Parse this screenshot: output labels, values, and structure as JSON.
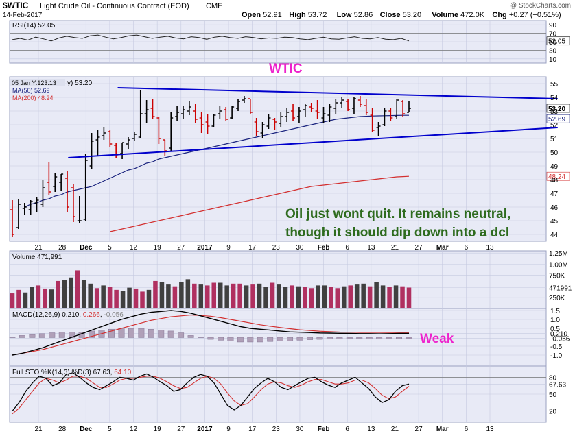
{
  "header": {
    "symbol": "$WTIC",
    "name": "Light Crude Oil - Continuous Contract (EOD)",
    "exchange": "CME",
    "date": "14-Feb-2017",
    "credit": "@ StockCharts.com",
    "ohlc": [
      {
        "label": "Open",
        "value": "52.91"
      },
      {
        "label": "High",
        "value": "53.72"
      },
      {
        "label": "Low",
        "value": "52.86"
      },
      {
        "label": "Close",
        "value": "53.20"
      },
      {
        "label": "Volume",
        "value": "472.0K"
      },
      {
        "label": "Chg",
        "value": "+0.27 (+0.51%)"
      }
    ]
  },
  "annotations": {
    "title": "WTIC",
    "weak": "Weak",
    "comment_line1": "Oil just wont quit.  It remains neutral,",
    "comment_line2": "though it should dip down into a dcl",
    "hover_label": "05 Jan Y:123.13",
    "hover_value": "y) 53.20"
  },
  "colors": {
    "panel_bg": "#e8eaf6",
    "grid": "#c5c9e0",
    "up_bar": "#000000",
    "down_bar": "#cc0000",
    "ma50": "#1a237e",
    "ma200": "#d32f2f",
    "trendline": "#0000cc",
    "title": "#ee22cc",
    "comment": "#2e6b1e",
    "vol_up": "#404040",
    "vol_down": "#b03060"
  },
  "chart_data": {
    "x_labels": [
      "21",
      "28",
      "Dec",
      "5",
      "12",
      "19",
      "27",
      "2017",
      "9",
      "17",
      "23",
      "30",
      "Feb",
      "6",
      "13",
      "21",
      "27",
      "Mar",
      "6",
      "13"
    ],
    "rsi": {
      "label": "RSI(14)",
      "value": "52.05",
      "ticks": [
        "90",
        "70",
        "50",
        "30",
        "10"
      ],
      "last_label": "52.05",
      "series": [
        55,
        58,
        54,
        61,
        57,
        52,
        59,
        63,
        60,
        58,
        64,
        66,
        61,
        57,
        60,
        64,
        66,
        62,
        58,
        61,
        63,
        59,
        57,
        62,
        60,
        56,
        61,
        63,
        60,
        58,
        62,
        60,
        57,
        59,
        58,
        61,
        60,
        57,
        55,
        58,
        61,
        57,
        56,
        59,
        62,
        58,
        57,
        60,
        56,
        55,
        58,
        52
      ]
    },
    "price": {
      "type": "ohlc",
      "label_suffix": "y) 53.20",
      "ma50_label": "MA(50) 52.69",
      "ma200_label": "MA(200) 48.24",
      "yticks": [
        "55",
        "54",
        "53",
        "52",
        "51",
        "50",
        "49",
        "48",
        "47",
        "46",
        "45",
        "44"
      ],
      "ylim": [
        43.5,
        55.5
      ],
      "last_close_label": "53.20",
      "ma50_last_label": "52.69",
      "ma200_last_label": "48.24",
      "bars": [
        {
          "o": 45.8,
          "h": 46.5,
          "l": 43.8,
          "c": 44.0
        },
        {
          "o": 44.5,
          "h": 46.6,
          "l": 44.4,
          "c": 46.2
        },
        {
          "o": 45.9,
          "h": 46.3,
          "l": 45.4,
          "c": 46.0
        },
        {
          "o": 45.8,
          "h": 46.5,
          "l": 45.4,
          "c": 46.4
        },
        {
          "o": 46.3,
          "h": 46.7,
          "l": 45.6,
          "c": 46.5
        },
        {
          "o": 46.2,
          "h": 48.0,
          "l": 46.0,
          "c": 47.4
        },
        {
          "o": 47.8,
          "h": 49.3,
          "l": 46.9,
          "c": 47.1
        },
        {
          "o": 47.5,
          "h": 48.5,
          "l": 47.1,
          "c": 48.2
        },
        {
          "o": 47.8,
          "h": 48.4,
          "l": 47.2,
          "c": 48.4
        },
        {
          "o": 48.1,
          "h": 48.6,
          "l": 45.6,
          "c": 46.0
        },
        {
          "o": 47.4,
          "h": 47.7,
          "l": 44.9,
          "c": 45.3
        },
        {
          "o": 45.0,
          "h": 46.8,
          "l": 44.8,
          "c": 45.0
        },
        {
          "o": 45.1,
          "h": 49.9,
          "l": 45.0,
          "c": 49.4
        },
        {
          "o": 49.0,
          "h": 51.4,
          "l": 48.8,
          "c": 50.8
        },
        {
          "o": 50.9,
          "h": 51.6,
          "l": 49.7,
          "c": 51.1
        },
        {
          "o": 51.2,
          "h": 51.8,
          "l": 50.9,
          "c": 51.4
        },
        {
          "o": 51.5,
          "h": 51.6,
          "l": 50.4,
          "c": 50.6
        },
        {
          "o": 50.5,
          "h": 50.7,
          "l": 49.6,
          "c": 49.8
        },
        {
          "o": 49.9,
          "h": 50.7,
          "l": 49.5,
          "c": 50.7
        },
        {
          "o": 50.6,
          "h": 51.1,
          "l": 50.2,
          "c": 50.9
        },
        {
          "o": 51.0,
          "h": 51.5,
          "l": 50.8,
          "c": 51.3
        },
        {
          "o": 51.1,
          "h": 54.5,
          "l": 51.0,
          "c": 52.8
        },
        {
          "o": 52.8,
          "h": 53.8,
          "l": 52.1,
          "c": 53.1
        },
        {
          "o": 53.2,
          "h": 53.9,
          "l": 52.4,
          "c": 52.6
        },
        {
          "o": 52.5,
          "h": 52.6,
          "l": 50.6,
          "c": 51.0
        },
        {
          "o": 50.9,
          "h": 50.9,
          "l": 49.7,
          "c": 50.1
        },
        {
          "o": 50.3,
          "h": 52.9,
          "l": 50.1,
          "c": 52.5
        },
        {
          "o": 52.6,
          "h": 53.4,
          "l": 52.3,
          "c": 52.9
        },
        {
          "o": 52.8,
          "h": 53.4,
          "l": 52.4,
          "c": 53.1
        },
        {
          "o": 53.0,
          "h": 53.7,
          "l": 52.7,
          "c": 53.3
        },
        {
          "o": 53.0,
          "h": 53.5,
          "l": 52.1,
          "c": 52.4
        },
        {
          "o": 52.5,
          "h": 52.9,
          "l": 51.4,
          "c": 52.0
        },
        {
          "o": 52.2,
          "h": 52.8,
          "l": 51.3,
          "c": 51.9
        },
        {
          "o": 51.9,
          "h": 52.8,
          "l": 51.8,
          "c": 52.7
        },
        {
          "o": 52.8,
          "h": 53.4,
          "l": 52.4,
          "c": 53.0
        },
        {
          "o": 53.1,
          "h": 53.3,
          "l": 52.3,
          "c": 52.4
        },
        {
          "o": 52.5,
          "h": 53.4,
          "l": 52.4,
          "c": 53.3
        },
        {
          "o": 53.2,
          "h": 53.9,
          "l": 53.0,
          "c": 53.7
        },
        {
          "o": 53.8,
          "h": 54.1,
          "l": 53.6,
          "c": 53.9
        },
        {
          "o": 53.9,
          "h": 53.9,
          "l": 52.8,
          "c": 52.9
        },
        {
          "o": 52.2,
          "h": 52.5,
          "l": 51.2,
          "c": 51.5
        },
        {
          "o": 51.4,
          "h": 52.2,
          "l": 51.0,
          "c": 52.0
        },
        {
          "o": 51.9,
          "h": 52.8,
          "l": 51.7,
          "c": 52.5
        },
        {
          "o": 52.4,
          "h": 52.5,
          "l": 51.6,
          "c": 52.2
        },
        {
          "o": 52.1,
          "h": 52.9,
          "l": 51.8,
          "c": 52.6
        },
        {
          "o": 52.6,
          "h": 53.2,
          "l": 52.2,
          "c": 52.9
        },
        {
          "o": 53.0,
          "h": 53.5,
          "l": 52.3,
          "c": 52.5
        },
        {
          "o": 52.6,
          "h": 53.3,
          "l": 52.1,
          "c": 53.0
        },
        {
          "o": 53.1,
          "h": 53.5,
          "l": 52.6,
          "c": 53.4
        },
        {
          "o": 53.3,
          "h": 53.6,
          "l": 52.9,
          "c": 53.2
        },
        {
          "o": 53.0,
          "h": 53.8,
          "l": 52.4,
          "c": 52.9
        },
        {
          "o": 52.5,
          "h": 53.3,
          "l": 52.1,
          "c": 52.8
        },
        {
          "o": 52.7,
          "h": 53.5,
          "l": 52.2,
          "c": 53.3
        },
        {
          "o": 53.2,
          "h": 53.9,
          "l": 52.8,
          "c": 53.6
        },
        {
          "o": 53.6,
          "h": 54.0,
          "l": 53.2,
          "c": 53.8
        },
        {
          "o": 53.7,
          "h": 53.9,
          "l": 53.0,
          "c": 53.1
        },
        {
          "o": 53.2,
          "h": 54.0,
          "l": 52.8,
          "c": 53.9
        },
        {
          "o": 53.8,
          "h": 54.1,
          "l": 53.3,
          "c": 53.5
        },
        {
          "o": 53.4,
          "h": 53.9,
          "l": 52.7,
          "c": 52.9
        },
        {
          "o": 52.7,
          "h": 53.2,
          "l": 51.5,
          "c": 51.6
        },
        {
          "o": 51.8,
          "h": 52.2,
          "l": 51.2,
          "c": 51.9
        },
        {
          "o": 52.0,
          "h": 53.2,
          "l": 51.9,
          "c": 53.0
        },
        {
          "o": 53.0,
          "h": 53.2,
          "l": 52.3,
          "c": 52.5
        },
        {
          "o": 52.6,
          "h": 53.9,
          "l": 52.4,
          "c": 53.8
        },
        {
          "o": 53.7,
          "h": 53.8,
          "l": 52.6,
          "c": 52.8
        },
        {
          "o": 52.9,
          "h": 53.7,
          "l": 52.9,
          "c": 53.2
        }
      ],
      "ma50": [
        46.0,
        46.2,
        46.3,
        46.5,
        46.6,
        46.8,
        46.9,
        47.1,
        47.2,
        47.3,
        47.4,
        47.5,
        47.7,
        47.9,
        48.1,
        48.3,
        48.5,
        48.7,
        48.8,
        49.0,
        49.2,
        49.3,
        49.5,
        49.6,
        49.7,
        49.8,
        49.9,
        50.0,
        50.1,
        50.2,
        50.3,
        50.4,
        50.5,
        50.6,
        50.7,
        50.8,
        50.9,
        51.0,
        51.1,
        51.2,
        51.3,
        51.4,
        51.5,
        51.6,
        51.7,
        51.8,
        51.9,
        52.0,
        52.1,
        52.2,
        52.3,
        52.4,
        52.45,
        52.5,
        52.55,
        52.6,
        52.62,
        52.64,
        52.65,
        52.66,
        52.67,
        52.68,
        52.69,
        52.69
      ],
      "ma200": [
        44.2,
        44.3,
        44.4,
        44.5,
        44.6,
        44.7,
        44.8,
        44.9,
        45.0,
        45.1,
        45.2,
        45.3,
        45.4,
        45.5,
        45.6,
        45.7,
        45.8,
        45.9,
        46.0,
        46.1,
        46.2,
        46.3,
        46.4,
        46.5,
        46.6,
        46.7,
        46.8,
        46.9,
        47.0,
        47.1,
        47.2,
        47.3,
        47.4,
        47.5,
        47.55,
        47.6,
        47.65,
        47.7,
        47.75,
        47.8,
        47.85,
        47.9,
        47.95,
        48.0,
        48.05,
        48.1,
        48.15,
        48.2,
        48.22,
        48.24
      ],
      "trendlines": [
        {
          "from": {
            "bar": 17,
            "y": 54.7
          },
          "to": {
            "bar": 88,
            "y": 53.9
          }
        },
        {
          "from": {
            "bar": 9,
            "y": 49.6
          },
          "to": {
            "bar": 88,
            "y": 51.8
          }
        }
      ]
    },
    "volume": {
      "label": "Volume",
      "value": "471,991",
      "ticks": [
        "1.25M",
        "1.00M",
        "750K",
        "471991",
        "250K"
      ],
      "values": [
        340,
        420,
        360,
        480,
        520,
        450,
        430,
        620,
        640,
        700,
        860,
        640,
        560,
        460,
        520,
        480,
        420,
        400,
        470,
        450,
        380,
        420,
        620,
        600,
        540,
        500,
        600,
        660,
        560,
        540,
        520,
        580,
        580,
        520,
        560,
        560,
        520,
        540,
        560,
        480,
        580,
        540,
        480,
        520,
        500,
        480,
        460,
        520,
        520,
        480,
        460,
        500,
        520,
        540,
        560,
        500,
        600,
        520,
        480,
        520,
        500,
        472
      ]
    },
    "macd": {
      "label": "MACD(12,26,9)",
      "macd": "0.210",
      "signal": "0.266",
      "hist": "-0.056",
      "ticks": [
        "1.5",
        "1.0",
        "0.5",
        "0.210",
        "-0.056",
        "-0.5",
        "-1.0"
      ],
      "macd_series": [
        -1.0,
        -0.9,
        -0.75,
        -0.6,
        -0.4,
        -0.2,
        0.0,
        0.2,
        0.4,
        0.6,
        0.8,
        1.0,
        1.15,
        1.3,
        1.4,
        1.45,
        1.5,
        1.45,
        1.35,
        1.2,
        1.05,
        0.9,
        0.75,
        0.6,
        0.5,
        0.45,
        0.4,
        0.35,
        0.3,
        0.28,
        0.26,
        0.24,
        0.23,
        0.22,
        0.21,
        0.2,
        0.2,
        0.19,
        0.2,
        0.21,
        0.21
      ],
      "signal_series": [
        -1.0,
        -0.9,
        -0.8,
        -0.7,
        -0.55,
        -0.4,
        -0.25,
        -0.1,
        0.05,
        0.2,
        0.35,
        0.5,
        0.65,
        0.8,
        0.95,
        1.05,
        1.15,
        1.2,
        1.25,
        1.22,
        1.18,
        1.1,
        1.0,
        0.9,
        0.8,
        0.7,
        0.62,
        0.55,
        0.48,
        0.42,
        0.38,
        0.34,
        0.31,
        0.29,
        0.28,
        0.27,
        0.27,
        0.27,
        0.266,
        0.266,
        0.266
      ],
      "hist_series": [
        0.0,
        0.1,
        0.15,
        0.2,
        0.25,
        0.3,
        0.3,
        0.3,
        0.35,
        0.4,
        0.45,
        0.5,
        0.5,
        0.5,
        0.45,
        0.4,
        0.35,
        0.25,
        0.1,
        0.0,
        -0.1,
        -0.15,
        -0.2,
        -0.25,
        -0.25,
        -0.25,
        -0.22,
        -0.2,
        -0.18,
        -0.15,
        -0.12,
        -0.1,
        -0.08,
        -0.07,
        -0.06,
        -0.06,
        -0.07,
        -0.07,
        -0.06,
        -0.06,
        -0.056
      ]
    },
    "sto": {
      "label": "Full STO %K(14,3) %D(3)",
      "k": "67.63",
      "d": "64.10",
      "ticks": [
        "80",
        "67.63",
        "50",
        "20"
      ],
      "k_series": [
        20,
        35,
        55,
        70,
        82,
        78,
        65,
        70,
        85,
        88,
        80,
        70,
        62,
        58,
        65,
        72,
        80,
        78,
        75,
        82,
        86,
        80,
        72,
        65,
        55,
        58,
        70,
        80,
        85,
        82,
        70,
        50,
        30,
        22,
        30,
        45,
        60,
        70,
        78,
        72,
        62,
        58,
        65,
        72,
        78,
        80,
        72,
        66,
        62,
        70,
        75,
        80,
        70,
        60,
        45,
        35,
        40,
        55,
        65,
        68
      ],
      "d_series": [
        15,
        25,
        40,
        55,
        70,
        78,
        75,
        70,
        75,
        82,
        82,
        78,
        70,
        62,
        62,
        68,
        75,
        78,
        78,
        80,
        82,
        82,
        78,
        72,
        65,
        60,
        62,
        70,
        78,
        82,
        78,
        68,
        52,
        38,
        30,
        33,
        45,
        58,
        68,
        72,
        70,
        65,
        62,
        66,
        72,
        76,
        76,
        72,
        68,
        68,
        70,
        75,
        75,
        70,
        60,
        48,
        42,
        45,
        55,
        64
      ]
    }
  }
}
